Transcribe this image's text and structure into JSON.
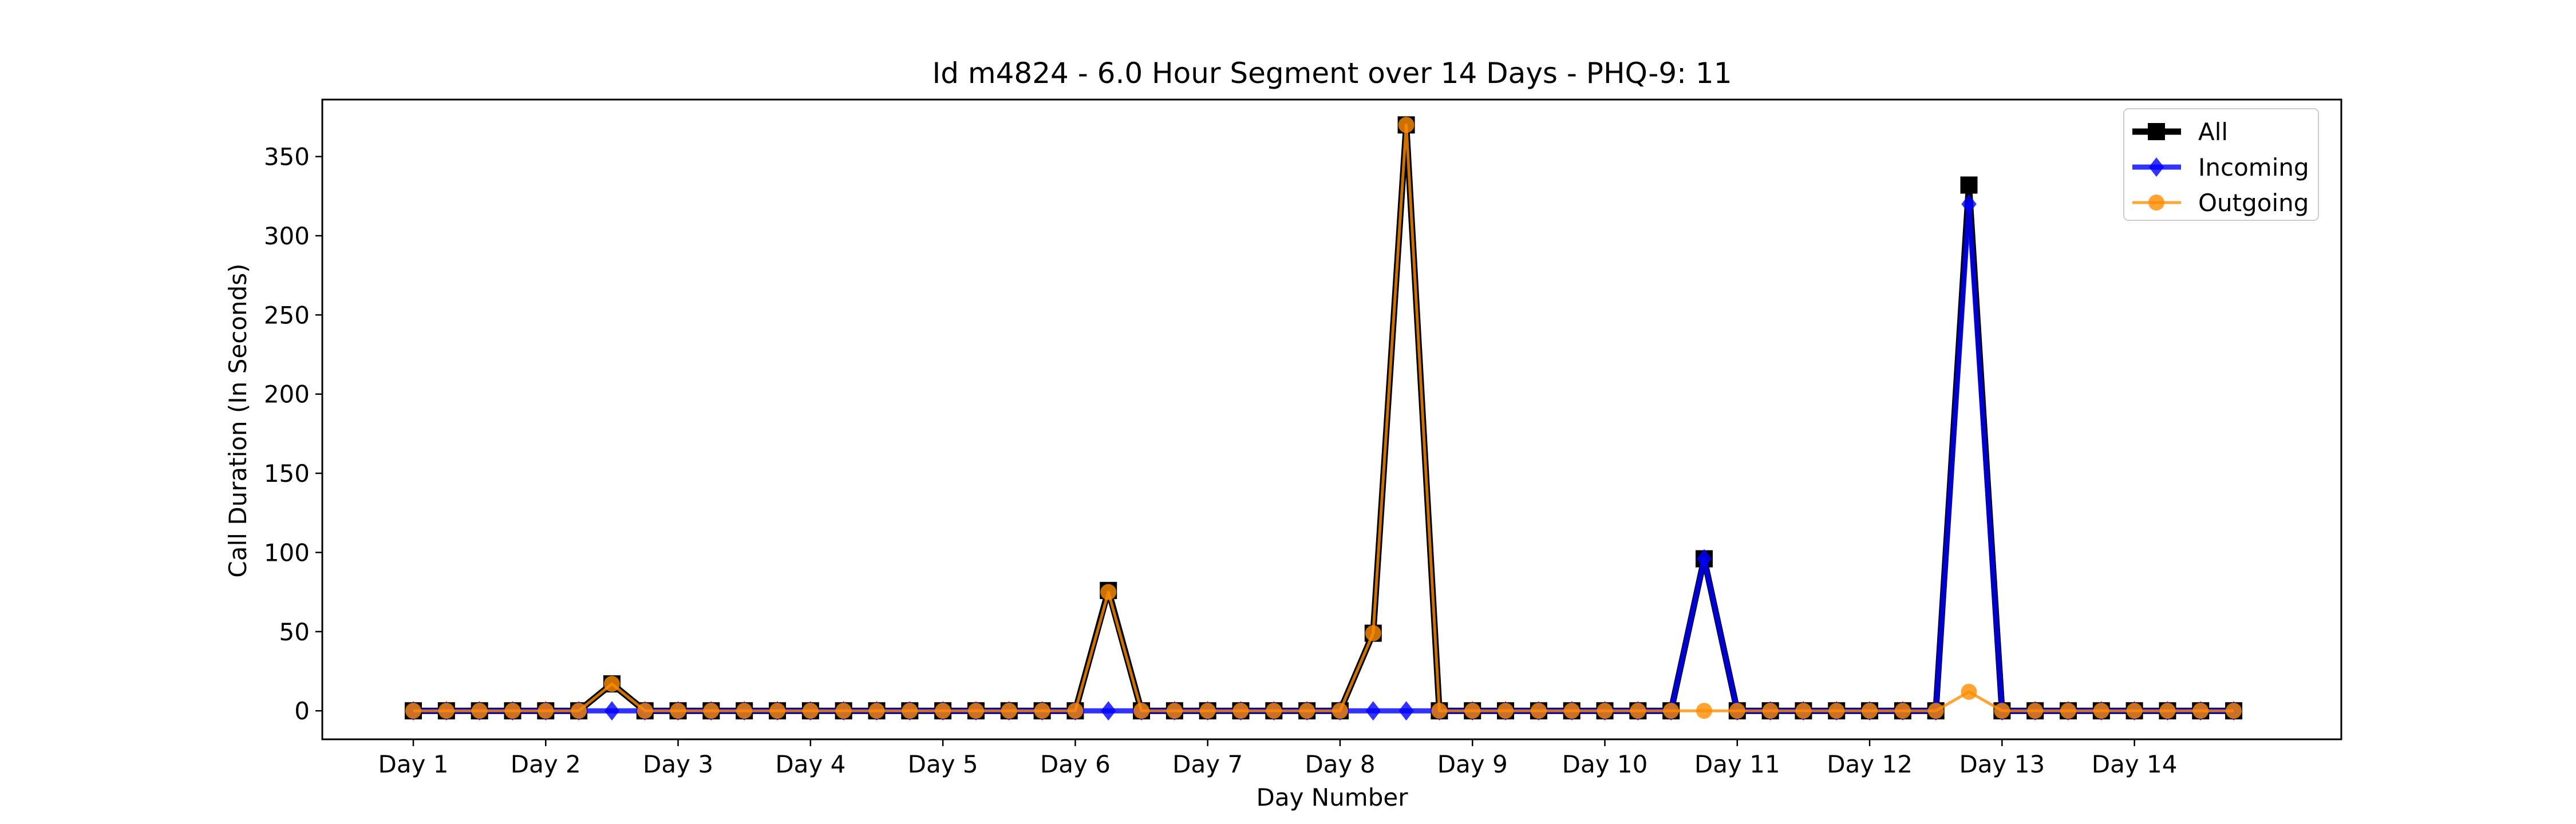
{
  "chart_data": {
    "type": "line",
    "title": "Id m4824 - 6.0 Hour Segment over 14 Days - PHQ-9: 11",
    "xlabel": "Day Number",
    "ylabel": "Call Duration (In Seconds)",
    "ylim": [
      -18,
      386
    ],
    "xlim": [
      -2.75,
      58.25
    ],
    "yticks": [
      0,
      50,
      100,
      150,
      200,
      250,
      300,
      350
    ],
    "xticks": [
      0,
      4,
      8,
      12,
      16,
      20,
      24,
      28,
      32,
      36,
      40,
      44,
      48,
      52
    ],
    "xtick_labels": [
      "Day 1",
      "Day 2",
      "Day 3",
      "Day 4",
      "Day 5",
      "Day 6",
      "Day 7",
      "Day 8",
      "Day 9",
      "Day 10",
      "Day 11",
      "Day 12",
      "Day 13",
      "Day 14"
    ],
    "grid": false,
    "legend": {
      "position": "top-right",
      "entries": [
        {
          "name": "All",
          "color": "#000000",
          "marker": "square"
        },
        {
          "name": "Incoming",
          "color": "#0000ff",
          "marker": "diamond"
        },
        {
          "name": "Outgoing",
          "color": "#ff8c00",
          "marker": "circle"
        }
      ]
    },
    "x": [
      0,
      1,
      2,
      3,
      4,
      5,
      6,
      7,
      8,
      9,
      10,
      11,
      12,
      13,
      14,
      15,
      16,
      17,
      18,
      19,
      20,
      21,
      22,
      23,
      24,
      25,
      26,
      27,
      28,
      29,
      30,
      31,
      32,
      33,
      34,
      35,
      36,
      37,
      38,
      39,
      40,
      41,
      42,
      43,
      44,
      45,
      46,
      47,
      48,
      49,
      50,
      51,
      52,
      53,
      54,
      55
    ],
    "series": [
      {
        "name": "All",
        "color": "#000000",
        "values": [
          0,
          0,
          0,
          0,
          0,
          0,
          17,
          0,
          0,
          0,
          0,
          0,
          0,
          0,
          0,
          0,
          0,
          0,
          0,
          0,
          0,
          76,
          0,
          0,
          0,
          0,
          0,
          0,
          0,
          49,
          370,
          0,
          0,
          0,
          0,
          0,
          0,
          0,
          0,
          96,
          0,
          0,
          0,
          0,
          0,
          0,
          0,
          332,
          0,
          0,
          0,
          0,
          0,
          0,
          0,
          0
        ]
      },
      {
        "name": "Incoming",
        "color": "#0000ff",
        "values": [
          0,
          0,
          0,
          0,
          0,
          0,
          0,
          0,
          0,
          0,
          0,
          0,
          0,
          0,
          0,
          0,
          0,
          0,
          0,
          0,
          0,
          0,
          0,
          0,
          0,
          0,
          0,
          0,
          0,
          0,
          0,
          0,
          0,
          0,
          0,
          0,
          0,
          0,
          0,
          96,
          0,
          0,
          0,
          0,
          0,
          0,
          0,
          320,
          0,
          0,
          0,
          0,
          0,
          0,
          0,
          0
        ]
      },
      {
        "name": "Outgoing",
        "color": "#ff8c00",
        "values": [
          0,
          0,
          0,
          0,
          0,
          0,
          17,
          0,
          0,
          0,
          0,
          0,
          0,
          0,
          0,
          0,
          0,
          0,
          0,
          0,
          0,
          75,
          0,
          0,
          0,
          0,
          0,
          0,
          0,
          49,
          370,
          0,
          0,
          0,
          0,
          0,
          0,
          0,
          0,
          0,
          0,
          0,
          0,
          0,
          0,
          0,
          0,
          12,
          0,
          0,
          0,
          0,
          0,
          0,
          0,
          0
        ]
      }
    ]
  }
}
